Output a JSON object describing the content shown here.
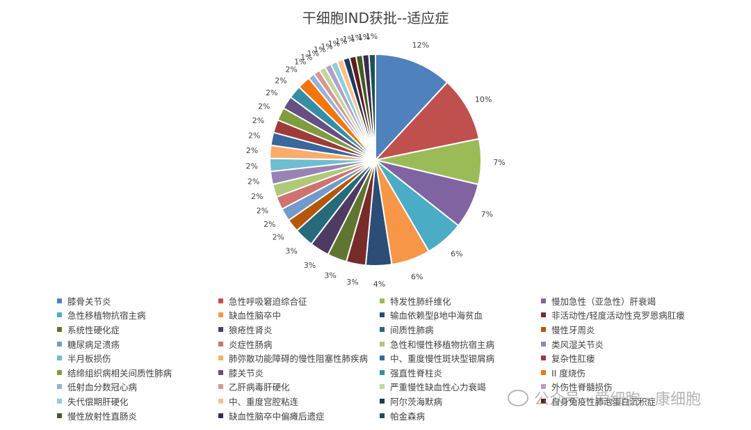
{
  "chart_data": {
    "type": "pie",
    "title": "干细胞IND获批--适应症",
    "legend_position": "bottom",
    "slices": [
      {
        "label": "膝骨关节炎",
        "value": 12,
        "value_label": "12%",
        "color": "#4f81bd"
      },
      {
        "label": "急性呼吸窘迫综合征",
        "value": 10,
        "value_label": "10%",
        "color": "#c0504d"
      },
      {
        "label": "特发性肺纤维化",
        "value": 7,
        "value_label": "7%",
        "color": "#9bbb59"
      },
      {
        "label": "慢加急性（亚急性）肝衰竭",
        "value": 7,
        "value_label": "7%",
        "color": "#8064a2"
      },
      {
        "label": "急性移植物抗宿主病",
        "value": 6,
        "value_label": "6%",
        "color": "#4bacc6"
      },
      {
        "label": "缺血性脑卒中",
        "value": 6,
        "value_label": "6%",
        "color": "#f79646"
      },
      {
        "label": "输血依赖型β地中海贫血",
        "value": 4,
        "value_label": "4%",
        "color": "#2c4d75"
      },
      {
        "label": "非活动性/轻度活动性克罗恩病肛瘘",
        "value": 3,
        "value_label": "3%",
        "color": "#772c2a"
      },
      {
        "label": "系统性硬化症",
        "value": 3,
        "value_label": "3%",
        "color": "#5f7530"
      },
      {
        "label": "狼疮性肾炎",
        "value": 3,
        "value_label": "3%",
        "color": "#4d3b62"
      },
      {
        "label": "间质性肺病",
        "value": 3,
        "value_label": "3%",
        "color": "#276a7c"
      },
      {
        "label": "慢性牙周炎",
        "value": 2,
        "value_label": "2%",
        "color": "#b65708"
      },
      {
        "label": "糖尿病足溃疡",
        "value": 2,
        "value_label": "2%",
        "color": "#729aca"
      },
      {
        "label": "炎症性肠病",
        "value": 2,
        "value_label": "2%",
        "color": "#cd7371"
      },
      {
        "label": "急性和慢性移植物抗宿主病",
        "value": 2,
        "value_label": "2%",
        "color": "#afc97a"
      },
      {
        "label": "类风湿关节炎",
        "value": 2,
        "value_label": "2%",
        "color": "#9983b5"
      },
      {
        "label": "半月板损伤",
        "value": 2,
        "value_label": "2%",
        "color": "#6fbdd1"
      },
      {
        "label": "肺弥散功能障碍的慢性阻塞性肺疾病",
        "value": 2,
        "value_label": "2%",
        "color": "#f9ab6b"
      },
      {
        "label": "中、重度慢性斑块型银屑病",
        "value": 2,
        "value_label": "2%",
        "color": "#3a679c"
      },
      {
        "label": "复杂性肛瘘",
        "value": 2,
        "value_label": "2%",
        "color": "#9e3b38"
      },
      {
        "label": "结缔组织病相关间质性肺病",
        "value": 2,
        "value_label": "2%",
        "color": "#7e9c40"
      },
      {
        "label": "膝关节炎",
        "value": 2,
        "value_label": "2%",
        "color": "#664f83"
      },
      {
        "label": "强直性脊柱炎",
        "value": 2,
        "value_label": "2%",
        "color": "#358ea6"
      },
      {
        "label": "II 度烧伤",
        "value": 2,
        "value_label": "2%",
        "color": "#f3760d"
      },
      {
        "label": "低射血分数冠心病",
        "value": 1,
        "value_label": "1%",
        "color": "#95b3d7"
      },
      {
        "label": "乙肝病毒肝硬化",
        "value": 1,
        "value_label": "1%",
        "color": "#d99694"
      },
      {
        "label": "严重慢性缺血性心力衰竭",
        "value": 1,
        "value_label": "1%",
        "color": "#c3d69b"
      },
      {
        "label": "外伤性脊髓损伤",
        "value": 1,
        "value_label": "1%",
        "color": "#b2a1c7"
      },
      {
        "label": "失代偿期肝硬化",
        "value": 1,
        "value_label": "1%",
        "color": "#92cddc"
      },
      {
        "label": "中、重度宫腔粘连",
        "value": 1,
        "value_label": "1%",
        "color": "#fac090"
      },
      {
        "label": "阿尔茨海默病",
        "value": 1,
        "value_label": "1%",
        "color": "#1f3a5a"
      },
      {
        "label": "自身免疫性肺泡蛋白沉积症",
        "value": 1,
        "value_label": "1%",
        "color": "#5a1f1e"
      },
      {
        "label": "慢性放射性直肠炎",
        "value": 1,
        "value_label": "1%",
        "color": "#475823"
      },
      {
        "label": "缺血性脑卒中偏瘫后遗症",
        "value": 1,
        "value_label": "1%",
        "color": "#3a2c49"
      },
      {
        "label": "帕金森病",
        "value": 1,
        "value_label": "1%",
        "color": "#1d505d"
      }
    ]
  },
  "watermark": {
    "text": "公众号 · 爱细胞 · 康细胞"
  }
}
